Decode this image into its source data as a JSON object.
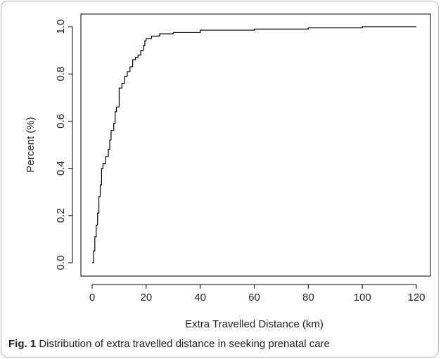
{
  "caption": {
    "label": "Fig. 1",
    "text": " Distribution of extra travelled distance in seeking prenatal care"
  },
  "chart_data": {
    "type": "line",
    "step": true,
    "xlabel": "Extra Travelled Distance (km)",
    "ylabel": "Percent (%)",
    "xlim": [
      0,
      120
    ],
    "ylim": [
      0,
      1
    ],
    "xticks": [
      0,
      20,
      40,
      60,
      80,
      100,
      120
    ],
    "yticks": [
      0.0,
      0.2,
      0.4,
      0.6,
      0.8,
      1.0
    ],
    "xtick_labels": [
      "0",
      "20",
      "40",
      "60",
      "80",
      "100",
      "120"
    ],
    "ytick_labels": [
      "0.0",
      "0.2",
      "0.4",
      "0.6",
      "0.8",
      "1.0"
    ],
    "grid": false,
    "line_color": "#000000",
    "series": [
      {
        "x": [
          0,
          0.5,
          1,
          1.5,
          2,
          2.5,
          3,
          3.5,
          4,
          5,
          6,
          6.5,
          7,
          8,
          8.5,
          9,
          10,
          11,
          12,
          13,
          14,
          15,
          16,
          17,
          18,
          19,
          19.5,
          20,
          22,
          25,
          30,
          40,
          60,
          80,
          100,
          110,
          120
        ],
        "y": [
          0.0,
          0.05,
          0.11,
          0.16,
          0.21,
          0.28,
          0.33,
          0.4,
          0.42,
          0.45,
          0.48,
          0.52,
          0.56,
          0.59,
          0.64,
          0.66,
          0.74,
          0.76,
          0.79,
          0.81,
          0.83,
          0.86,
          0.87,
          0.88,
          0.9,
          0.92,
          0.94,
          0.95,
          0.96,
          0.97,
          0.975,
          0.985,
          0.99,
          0.995,
          1.0,
          1.0,
          1.0
        ]
      }
    ]
  }
}
